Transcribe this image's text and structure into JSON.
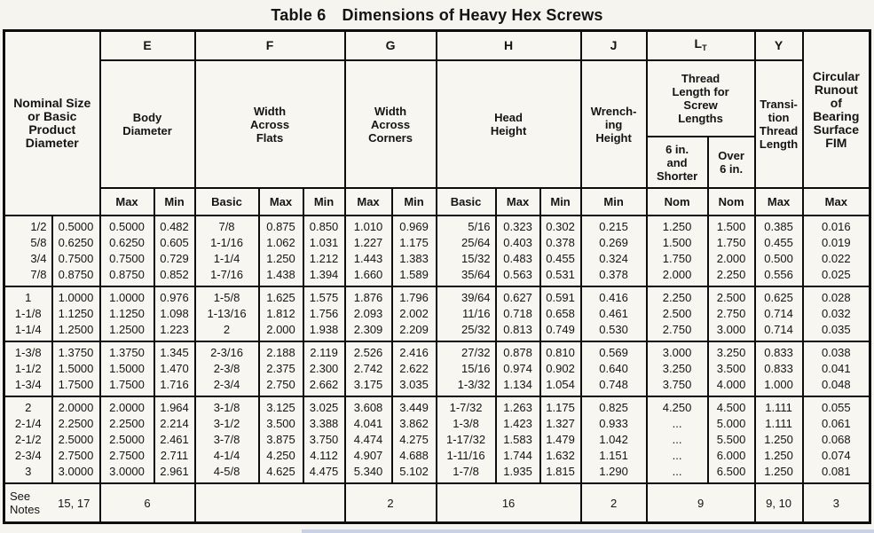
{
  "title": {
    "label": "Table 6",
    "text": "Dimensions of Heavy Hex Screws"
  },
  "header": {
    "nominal_label": "Nominal Size\nor Basic\nProduct\nDiameter",
    "col_E": {
      "letter": "E",
      "desc": "Body\nDiameter",
      "sub1": "Max",
      "sub2": "Min"
    },
    "col_F": {
      "letter": "F",
      "desc": "Width\nAcross\nFlats",
      "sub1": "Basic",
      "sub2": "Max",
      "sub3": "Min"
    },
    "col_G": {
      "letter": "G",
      "desc": "Width\nAcross\nCorners",
      "sub1": "Max",
      "sub2": "Min"
    },
    "col_H": {
      "letter": "H",
      "desc": "Head\nHeight",
      "sub1": "Basic",
      "sub2": "Max",
      "sub3": "Min"
    },
    "col_J": {
      "letter": "J",
      "desc": "Wrench-\ning\nHeight",
      "sub1": "Min"
    },
    "col_LT": {
      "letter_main": "L",
      "letter_sub": "T",
      "desc": "Thread\nLength for\nScrew\nLengths",
      "range1": "6 in.\nand\nShorter",
      "range2": "Over\n6 in.",
      "sub1": "Nom",
      "sub2": "Nom"
    },
    "col_Y": {
      "letter": "Y",
      "desc": "Transi-\ntion\nThread\nLength",
      "sub1": "Max"
    },
    "col_runout": {
      "desc": "Circular\nRunout\nof\nBearing\nSurface\nFIM",
      "sub1": "Max"
    }
  },
  "body": {
    "columns": [
      "nominal_fraction",
      "nominal_decimal",
      "E_max",
      "E_min",
      "F_basic",
      "F_max",
      "F_min",
      "G_max",
      "G_min",
      "H_basic",
      "H_max",
      "H_min",
      "J_min",
      "LT_6in_shorter_nom",
      "LT_over_6in_nom",
      "Y_max",
      "runout_max"
    ],
    "groups": [
      {
        "rows": [
          [
            "1/2",
            "0.5000",
            "0.5000",
            "0.482",
            "7/8",
            "0.875",
            "0.850",
            "1.010",
            "0.969",
            "5/16",
            "0.323",
            "0.302",
            "0.215",
            "1.250",
            "1.500",
            "0.385",
            "0.016"
          ],
          [
            "5/8",
            "0.6250",
            "0.6250",
            "0.605",
            "1-1/16",
            "1.062",
            "1.031",
            "1.227",
            "1.175",
            "25/64",
            "0.403",
            "0.378",
            "0.269",
            "1.500",
            "1.750",
            "0.455",
            "0.019"
          ],
          [
            "3/4",
            "0.7500",
            "0.7500",
            "0.729",
            "1-1/4",
            "1.250",
            "1.212",
            "1.443",
            "1.383",
            "15/32",
            "0.483",
            "0.455",
            "0.324",
            "1.750",
            "2.000",
            "0.500",
            "0.022"
          ],
          [
            "7/8",
            "0.8750",
            "0.8750",
            "0.852",
            "1-7/16",
            "1.438",
            "1.394",
            "1.660",
            "1.589",
            "35/64",
            "0.563",
            "0.531",
            "0.378",
            "2.000",
            "2.250",
            "0.556",
            "0.025"
          ]
        ]
      },
      {
        "rows": [
          [
            "1",
            "1.0000",
            "1.0000",
            "0.976",
            "1-5/8",
            "1.625",
            "1.575",
            "1.876",
            "1.796",
            "39/64",
            "0.627",
            "0.591",
            "0.416",
            "2.250",
            "2.500",
            "0.625",
            "0.028"
          ],
          [
            "1-1/8",
            "1.1250",
            "1.1250",
            "1.098",
            "1-13/16",
            "1.812",
            "1.756",
            "2.093",
            "2.002",
            "11/16",
            "0.718",
            "0.658",
            "0.461",
            "2.500",
            "2.750",
            "0.714",
            "0.032"
          ],
          [
            "1-1/4",
            "1.2500",
            "1.2500",
            "1.223",
            "2",
            "2.000",
            "1.938",
            "2.309",
            "2.209",
            "25/32",
            "0.813",
            "0.749",
            "0.530",
            "2.750",
            "3.000",
            "0.714",
            "0.035"
          ]
        ]
      },
      {
        "rows": [
          [
            "1-3/8",
            "1.3750",
            "1.3750",
            "1.345",
            "2-3/16",
            "2.188",
            "2.119",
            "2.526",
            "2.416",
            "27/32",
            "0.878",
            "0.810",
            "0.569",
            "3.000",
            "3.250",
            "0.833",
            "0.038"
          ],
          [
            "1-1/2",
            "1.5000",
            "1.5000",
            "1.470",
            "2-3/8",
            "2.375",
            "2.300",
            "2.742",
            "2.622",
            "15/16",
            "0.974",
            "0.902",
            "0.640",
            "3.250",
            "3.500",
            "0.833",
            "0.041"
          ],
          [
            "1-3/4",
            "1.7500",
            "1.7500",
            "1.716",
            "2-3/4",
            "2.750",
            "2.662",
            "3.175",
            "3.035",
            "1-3/32",
            "1.134",
            "1.054",
            "0.748",
            "3.750",
            "4.000",
            "1.000",
            "0.048"
          ]
        ]
      },
      {
        "rows": [
          [
            "2",
            "2.0000",
            "2.0000",
            "1.964",
            "3-1/8",
            "3.125",
            "3.025",
            "3.608",
            "3.449",
            "1-7/32",
            "1.263",
            "1.175",
            "0.825",
            "4.250",
            "4.500",
            "1.111",
            "0.055"
          ],
          [
            "2-1/4",
            "2.2500",
            "2.2500",
            "2.214",
            "3-1/2",
            "3.500",
            "3.388",
            "4.041",
            "3.862",
            "1-3/8",
            "1.423",
            "1.327",
            "0.933",
            "...",
            "5.000",
            "1.111",
            "0.061"
          ],
          [
            "2-1/2",
            "2.5000",
            "2.5000",
            "2.461",
            "3-7/8",
            "3.875",
            "3.750",
            "4.474",
            "4.275",
            "1-17/32",
            "1.583",
            "1.479",
            "1.042",
            "...",
            "5.500",
            "1.250",
            "0.068"
          ],
          [
            "2-3/4",
            "2.7500",
            "2.7500",
            "2.711",
            "4-1/4",
            "4.250",
            "4.112",
            "4.907",
            "4.688",
            "1-11/16",
            "1.744",
            "1.632",
            "1.151",
            "...",
            "6.000",
            "1.250",
            "0.074"
          ],
          [
            "3",
            "3.0000",
            "3.0000",
            "2.961",
            "4-5/8",
            "4.625",
            "4.475",
            "5.340",
            "5.102",
            "1-7/8",
            "1.935",
            "1.815",
            "1.290",
            "...",
            "6.500",
            "1.250",
            "0.081"
          ]
        ]
      }
    ]
  },
  "footer": {
    "see_notes_label": "See\nNotes",
    "nominal_note": "15, 17",
    "e_note": "6",
    "f_note": "",
    "g_note": "2",
    "h_note": "16",
    "j_note": "2",
    "lt_note": "9",
    "y_note": "9, 10",
    "runout_note": "3"
  },
  "colors": {
    "paper": "#f5f4ef",
    "ink": "#141414",
    "grid": "#0d0d0d",
    "scan_artifact_blue": "#bcc9e4"
  }
}
